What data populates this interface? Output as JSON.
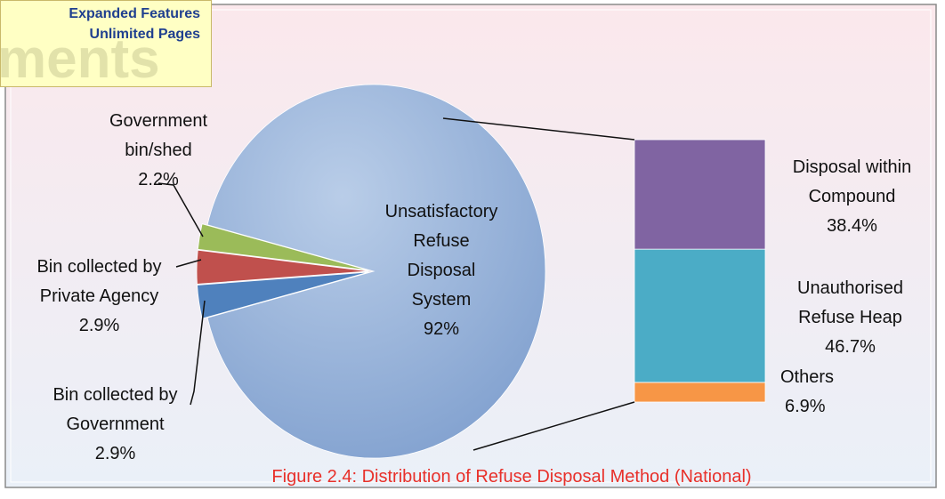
{
  "watermark": {
    "lines": [
      "Expanded Features",
      "Unlimited Pages"
    ],
    "background_text": "ments"
  },
  "chart_data": {
    "type": "pie",
    "title": "Figure 2.4: Distribution of Refuse Disposal Method (National)",
    "categories": [
      "Government bin/shed",
      "Bin collected by Private Agency",
      "Bin collected by Government",
      "Unsatisfactory Refuse Disposal System"
    ],
    "values": [
      2.2,
      2.9,
      2.9,
      92
    ],
    "value_labels": [
      "2.2%",
      "2.9%",
      "2.9%",
      "92%"
    ],
    "colors": [
      "#9bbb59",
      "#c0504d",
      "#4f81bd",
      "#95b3d7"
    ],
    "breakdown": {
      "categories": [
        "Others",
        "Unauthorised Refuse Heap",
        "Disposal within Compound"
      ],
      "values": [
        6.9,
        46.7,
        38.4
      ],
      "value_labels": [
        "6.9%",
        "46.7%",
        "38.4%"
      ],
      "colors": [
        "#f79646",
        "#4bacc6",
        "#8064a2"
      ]
    }
  }
}
